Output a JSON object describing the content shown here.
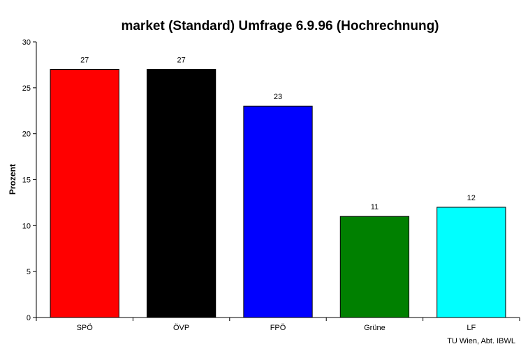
{
  "chart_data": {
    "type": "bar",
    "title": "market (Standard) Umfrage 6.9.96 (Hochrechnung)",
    "xlabel": "",
    "ylabel": "Prozent",
    "categories": [
      "SPÖ",
      "ÖVP",
      "FPÖ",
      "Grüne",
      "LF"
    ],
    "values": [
      27,
      27,
      23,
      11,
      12
    ],
    "data_labels": [
      "27",
      "27",
      "23",
      "11",
      "12"
    ],
    "colors": [
      "#ff0000",
      "#000000",
      "#0000ff",
      "#008000",
      "#00ffff"
    ],
    "ylim": [
      0,
      30
    ],
    "yticks": [
      0,
      5,
      10,
      15,
      20,
      25,
      30
    ],
    "grid": false,
    "legend": "none"
  },
  "footer": "TU Wien, Abt. IBWL"
}
